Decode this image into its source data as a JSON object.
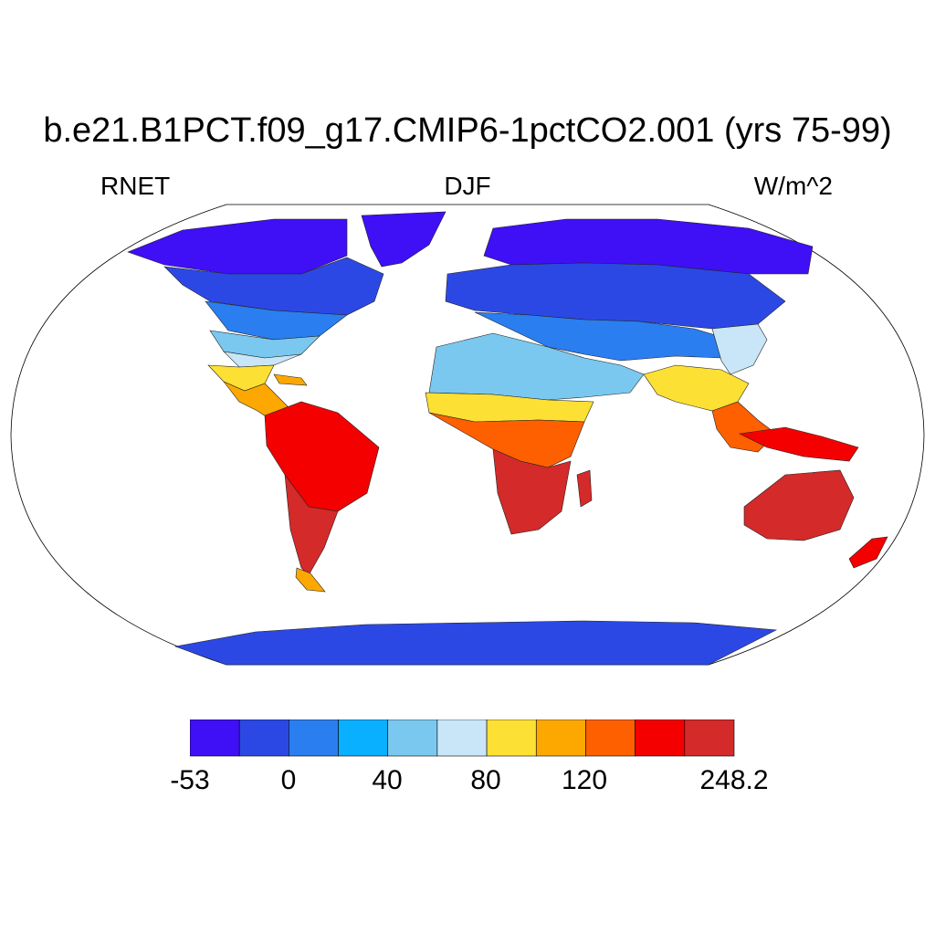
{
  "title": "b.e21.B1PCT.f09_g17.CMIP6-1pctCO2.001 (yrs 75-99)",
  "variable": "RNET",
  "season": "DJF",
  "units": "W/m^2",
  "colorbar": {
    "colors": [
      "#3f0ff5",
      "#2c48e4",
      "#2a7ef0",
      "#08b0ff",
      "#7ac8f0",
      "#c8e6f8",
      "#fde034",
      "#fda800",
      "#fe6000",
      "#f40000",
      "#d42a2a"
    ],
    "tick_labels": [
      "-53",
      "0",
      "40",
      "80",
      "120",
      "248.2"
    ]
  },
  "regions": [
    {
      "id": "greenland",
      "color": "#3f0ff5"
    },
    {
      "id": "north-canada",
      "color": "#3f0ff5"
    },
    {
      "id": "canada",
      "color": "#2c48e4"
    },
    {
      "id": "north-usa",
      "color": "#2a7ef0"
    },
    {
      "id": "south-usa",
      "color": "#7ac8f0"
    },
    {
      "id": "gulf-coast",
      "color": "#c8e6f8"
    },
    {
      "id": "mexico",
      "color": "#fde034"
    },
    {
      "id": "central-america",
      "color": "#fda800"
    },
    {
      "id": "caribbean",
      "color": "#fda800"
    },
    {
      "id": "south-america-north",
      "color": "#f40000"
    },
    {
      "id": "south-america-south",
      "color": "#d42a2a"
    },
    {
      "id": "patagonia-tip",
      "color": "#fda800"
    },
    {
      "id": "siberia",
      "color": "#3f0ff5"
    },
    {
      "id": "europe-russia",
      "color": "#2c48e4"
    },
    {
      "id": "central-asia",
      "color": "#2a7ef0"
    },
    {
      "id": "north-africa-middle-east",
      "color": "#7ac8f0"
    },
    {
      "id": "sahel",
      "color": "#fde034"
    },
    {
      "id": "west-central-africa",
      "color": "#fe6000"
    },
    {
      "id": "southern-africa",
      "color": "#d42a2a"
    },
    {
      "id": "madagascar",
      "color": "#d42a2a"
    },
    {
      "id": "south-asia",
      "color": "#fde034"
    },
    {
      "id": "east-asia",
      "color": "#c8e6f8"
    },
    {
      "id": "southeast-asia",
      "color": "#fe6000"
    },
    {
      "id": "maritime-continent",
      "color": "#f40000"
    },
    {
      "id": "australia",
      "color": "#d42a2a"
    },
    {
      "id": "new-zealand",
      "color": "#f40000"
    },
    {
      "id": "antarctica",
      "color": "#2c48e4"
    }
  ]
}
